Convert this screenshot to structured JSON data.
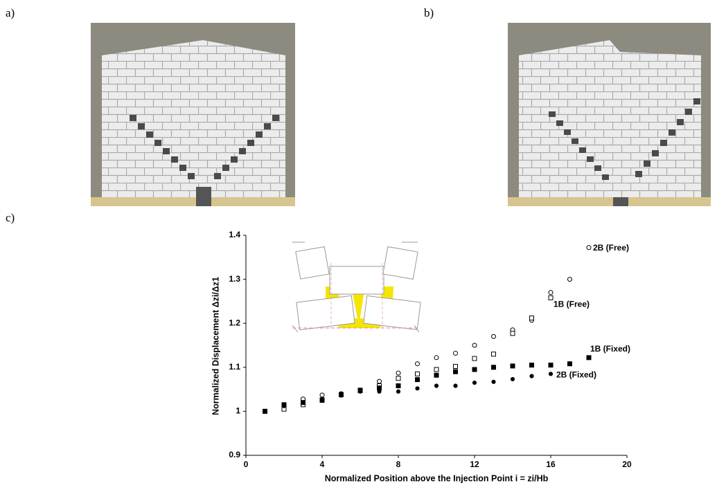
{
  "panel_labels": [
    "a)",
    "b)",
    "c)"
  ],
  "chart_data": {
    "type": "scatter",
    "xlabel": "Normalized Position above the Injection Point i = zi/Hb",
    "ylabel": "Normalized Displacement Δzi/Δz1",
    "xlim": [
      0,
      20
    ],
    "xticks": [
      0,
      4,
      8,
      12,
      16,
      20
    ],
    "ylim": [
      0.9,
      1.4
    ],
    "yticks": [
      0.9,
      1,
      1.1,
      1.2,
      1.3,
      1.4
    ],
    "series": [
      {
        "name": "2B (Free)",
        "color": "#000000",
        "marker": "circle",
        "filled": false,
        "x": [
          1,
          2,
          3,
          4,
          5,
          6,
          7,
          8,
          9,
          10,
          11,
          12,
          13,
          14,
          15,
          16,
          17,
          18
        ],
        "values": [
          1.0,
          1.01,
          1.028,
          1.037,
          1.04,
          1.048,
          1.068,
          1.087,
          1.108,
          1.122,
          1.132,
          1.15,
          1.17,
          1.185,
          1.207,
          1.27,
          1.3,
          1.372
        ]
      },
      {
        "name": "1B (Free)",
        "color": "#000000",
        "marker": "square",
        "filled": false,
        "x": [
          1,
          2,
          3,
          4,
          5,
          6,
          7,
          8,
          9,
          10,
          11,
          12,
          13,
          14,
          15,
          16
        ],
        "values": [
          1.0,
          1.005,
          1.015,
          1.025,
          1.038,
          1.048,
          1.058,
          1.075,
          1.085,
          1.095,
          1.102,
          1.12,
          1.13,
          1.177,
          1.212,
          1.258
        ]
      },
      {
        "name": "1B (Fixed)",
        "color": "#000000",
        "marker": "square",
        "filled": true,
        "x": [
          1,
          2,
          3,
          4,
          5,
          6,
          7,
          8,
          9,
          10,
          11,
          12,
          13,
          14,
          15,
          16,
          17,
          18
        ],
        "values": [
          1.0,
          1.015,
          1.02,
          1.026,
          1.038,
          1.047,
          1.053,
          1.058,
          1.072,
          1.082,
          1.09,
          1.095,
          1.1,
          1.103,
          1.105,
          1.105,
          1.108,
          1.122
        ]
      },
      {
        "name": "2B (Fixed)",
        "color": "#000000",
        "marker": "circle",
        "filled": true,
        "x": [
          1,
          2,
          3,
          4,
          5,
          6,
          7,
          8,
          9,
          10,
          11,
          12,
          13,
          14,
          15,
          16
        ],
        "values": [
          1.0,
          1.012,
          1.02,
          1.028,
          1.036,
          1.045,
          1.045,
          1.045,
          1.052,
          1.058,
          1.058,
          1.065,
          1.067,
          1.073,
          1.08,
          1.085
        ]
      }
    ]
  }
}
